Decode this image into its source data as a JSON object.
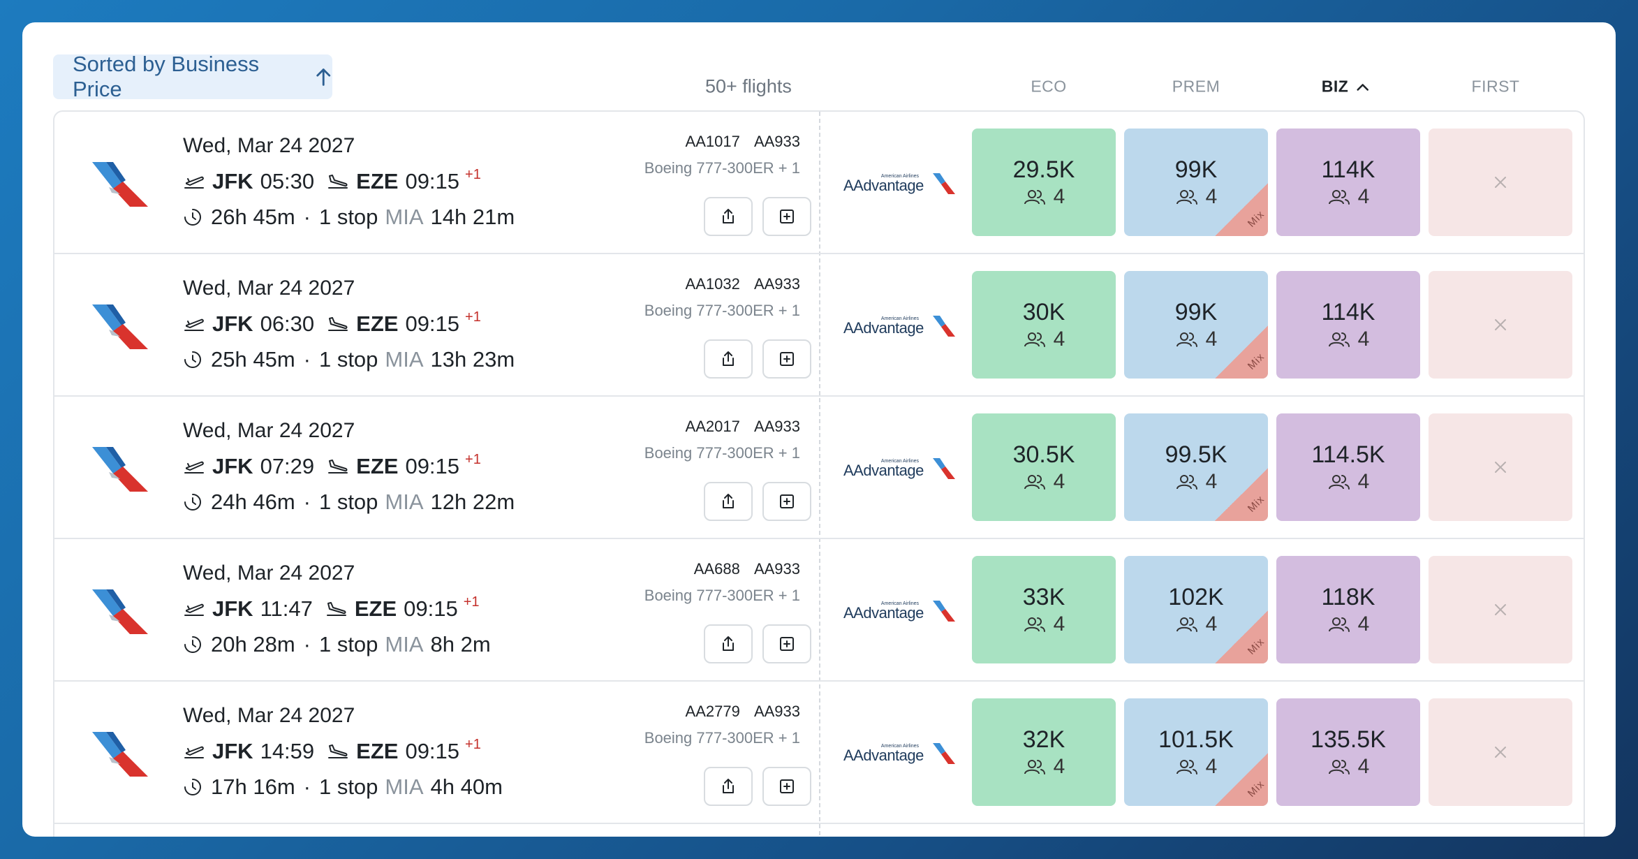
{
  "toolbar": {
    "sort_label": "Sorted by Business Price",
    "flight_count": "50+ flights",
    "columns": [
      "ECO",
      "PREM",
      "BIZ",
      "FIRST"
    ],
    "active_column": "BIZ"
  },
  "colors": {
    "eco": "#a8e2c2",
    "prem": "#bcd8ec",
    "biz": "#d3bddf",
    "first": "#f6e6e6",
    "mix": "#e8a29b",
    "plus_day": "#c4302b"
  },
  "mix_label": "Mix",
  "flights": [
    {
      "date": "Wed, Mar 24 2027",
      "origin": "JFK",
      "dep_time": "05:30",
      "dest": "EZE",
      "arr_time": "09:15",
      "day_offset": "+1",
      "duration": "26h 45m",
      "stops": "1 stop",
      "via": "MIA",
      "layover": "14h 21m",
      "flight_1": "AA1017",
      "flight_2": "AA933",
      "aircraft": "Boeing 777-300ER + 1",
      "eco_price": "29.5K",
      "eco_seats": "4",
      "prem_price": "99K",
      "prem_seats": "4",
      "biz_price": "114K",
      "biz_seats": "4",
      "first": "unavailable"
    },
    {
      "date": "Wed, Mar 24 2027",
      "origin": "JFK",
      "dep_time": "06:30",
      "dest": "EZE",
      "arr_time": "09:15",
      "day_offset": "+1",
      "duration": "25h 45m",
      "stops": "1 stop",
      "via": "MIA",
      "layover": "13h 23m",
      "flight_1": "AA1032",
      "flight_2": "AA933",
      "aircraft": "Boeing 777-300ER + 1",
      "eco_price": "30K",
      "eco_seats": "4",
      "prem_price": "99K",
      "prem_seats": "4",
      "biz_price": "114K",
      "biz_seats": "4",
      "first": "unavailable"
    },
    {
      "date": "Wed, Mar 24 2027",
      "origin": "JFK",
      "dep_time": "07:29",
      "dest": "EZE",
      "arr_time": "09:15",
      "day_offset": "+1",
      "duration": "24h 46m",
      "stops": "1 stop",
      "via": "MIA",
      "layover": "12h 22m",
      "flight_1": "AA2017",
      "flight_2": "AA933",
      "aircraft": "Boeing 777-300ER + 1",
      "eco_price": "30.5K",
      "eco_seats": "4",
      "prem_price": "99.5K",
      "prem_seats": "4",
      "biz_price": "114.5K",
      "biz_seats": "4",
      "first": "unavailable"
    },
    {
      "date": "Wed, Mar 24 2027",
      "origin": "JFK",
      "dep_time": "11:47",
      "dest": "EZE",
      "arr_time": "09:15",
      "day_offset": "+1",
      "duration": "20h 28m",
      "stops": "1 stop",
      "via": "MIA",
      "layover": "8h 2m",
      "flight_1": "AA688",
      "flight_2": "AA933",
      "aircraft": "Boeing 777-300ER + 1",
      "eco_price": "33K",
      "eco_seats": "4",
      "prem_price": "102K",
      "prem_seats": "4",
      "biz_price": "118K",
      "biz_seats": "4",
      "first": "unavailable"
    },
    {
      "date": "Wed, Mar 24 2027",
      "origin": "JFK",
      "dep_time": "14:59",
      "dest": "EZE",
      "arr_time": "09:15",
      "day_offset": "+1",
      "duration": "17h 16m",
      "stops": "1 stop",
      "via": "MIA",
      "layover": "4h 40m",
      "flight_1": "AA2779",
      "flight_2": "AA933",
      "aircraft": "Boeing 777-300ER + 1",
      "eco_price": "32K",
      "eco_seats": "4",
      "prem_price": "101.5K",
      "prem_seats": "4",
      "biz_price": "135.5K",
      "biz_seats": "4",
      "first": "unavailable"
    }
  ],
  "icons": {
    "sort": "arrow-up-icon",
    "active_sort": "chevron-up-icon",
    "departure": "takeoff-icon",
    "arrival": "landing-icon",
    "duration": "clock-icon",
    "share": "share-icon",
    "add": "add-icon",
    "seats": "users-icon",
    "unavailable": "close-icon",
    "airline": "american-airlines-logo",
    "program": "aadvantage-logo"
  },
  "program_logo": {
    "small_text": "American Airlines",
    "main_text": "AAdvantage"
  }
}
